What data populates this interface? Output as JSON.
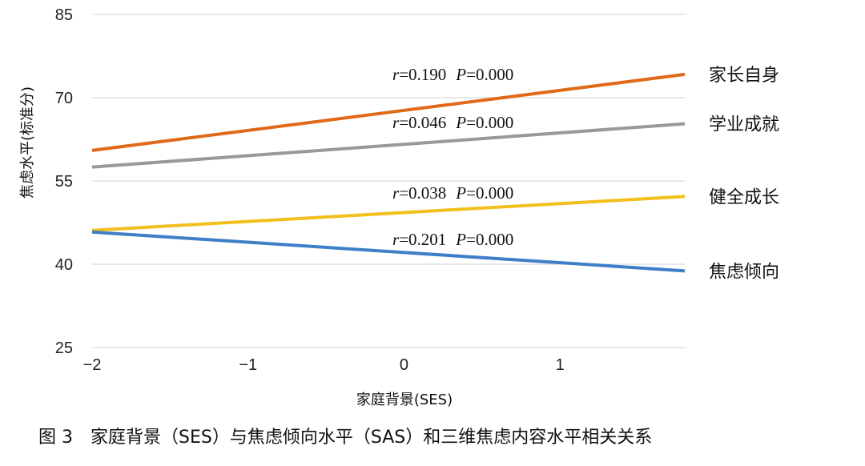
{
  "caption": {
    "figure_number": "图 3",
    "text": "家庭背景（SES）与焦虑倾向水平（SAS）和三维焦虑内容水平相关关系"
  },
  "chart_data": {
    "type": "line",
    "xlabel": "家庭背景(SES)",
    "ylabel": "焦虑水平(标准分)",
    "xlim": [
      -2,
      1.8
    ],
    "ylim": [
      25,
      85
    ],
    "xticks": [
      -2,
      -1,
      0,
      1
    ],
    "xtick_labels": [
      "−2",
      "−1",
      "0",
      "1"
    ],
    "yticks": [
      25,
      40,
      55,
      70,
      85
    ],
    "grid": "horizontal",
    "series": [
      {
        "name": "家长自身",
        "color": "#e06a1a",
        "x": [
          -2,
          1.8
        ],
        "values": [
          60.5,
          74.2
        ],
        "stat_r": "0.190",
        "stat_p": "0.000"
      },
      {
        "name": "学业成就",
        "color": "#999999",
        "x": [
          -2,
          1.8
        ],
        "values": [
          57.5,
          65.3
        ],
        "stat_r": "0.046",
        "stat_p": "0.000"
      },
      {
        "name": "健全成长",
        "color": "#f2bf1d",
        "x": [
          -2,
          1.8
        ],
        "values": [
          46.1,
          52.2
        ],
        "stat_r": "0.038",
        "stat_p": "0.000"
      },
      {
        "name": "焦虑倾向",
        "color": "#3f7fc7",
        "x": [
          -2,
          1.8
        ],
        "values": [
          45.8,
          38.8
        ],
        "stat_r": "0.201",
        "stat_p": "0.000"
      }
    ]
  }
}
